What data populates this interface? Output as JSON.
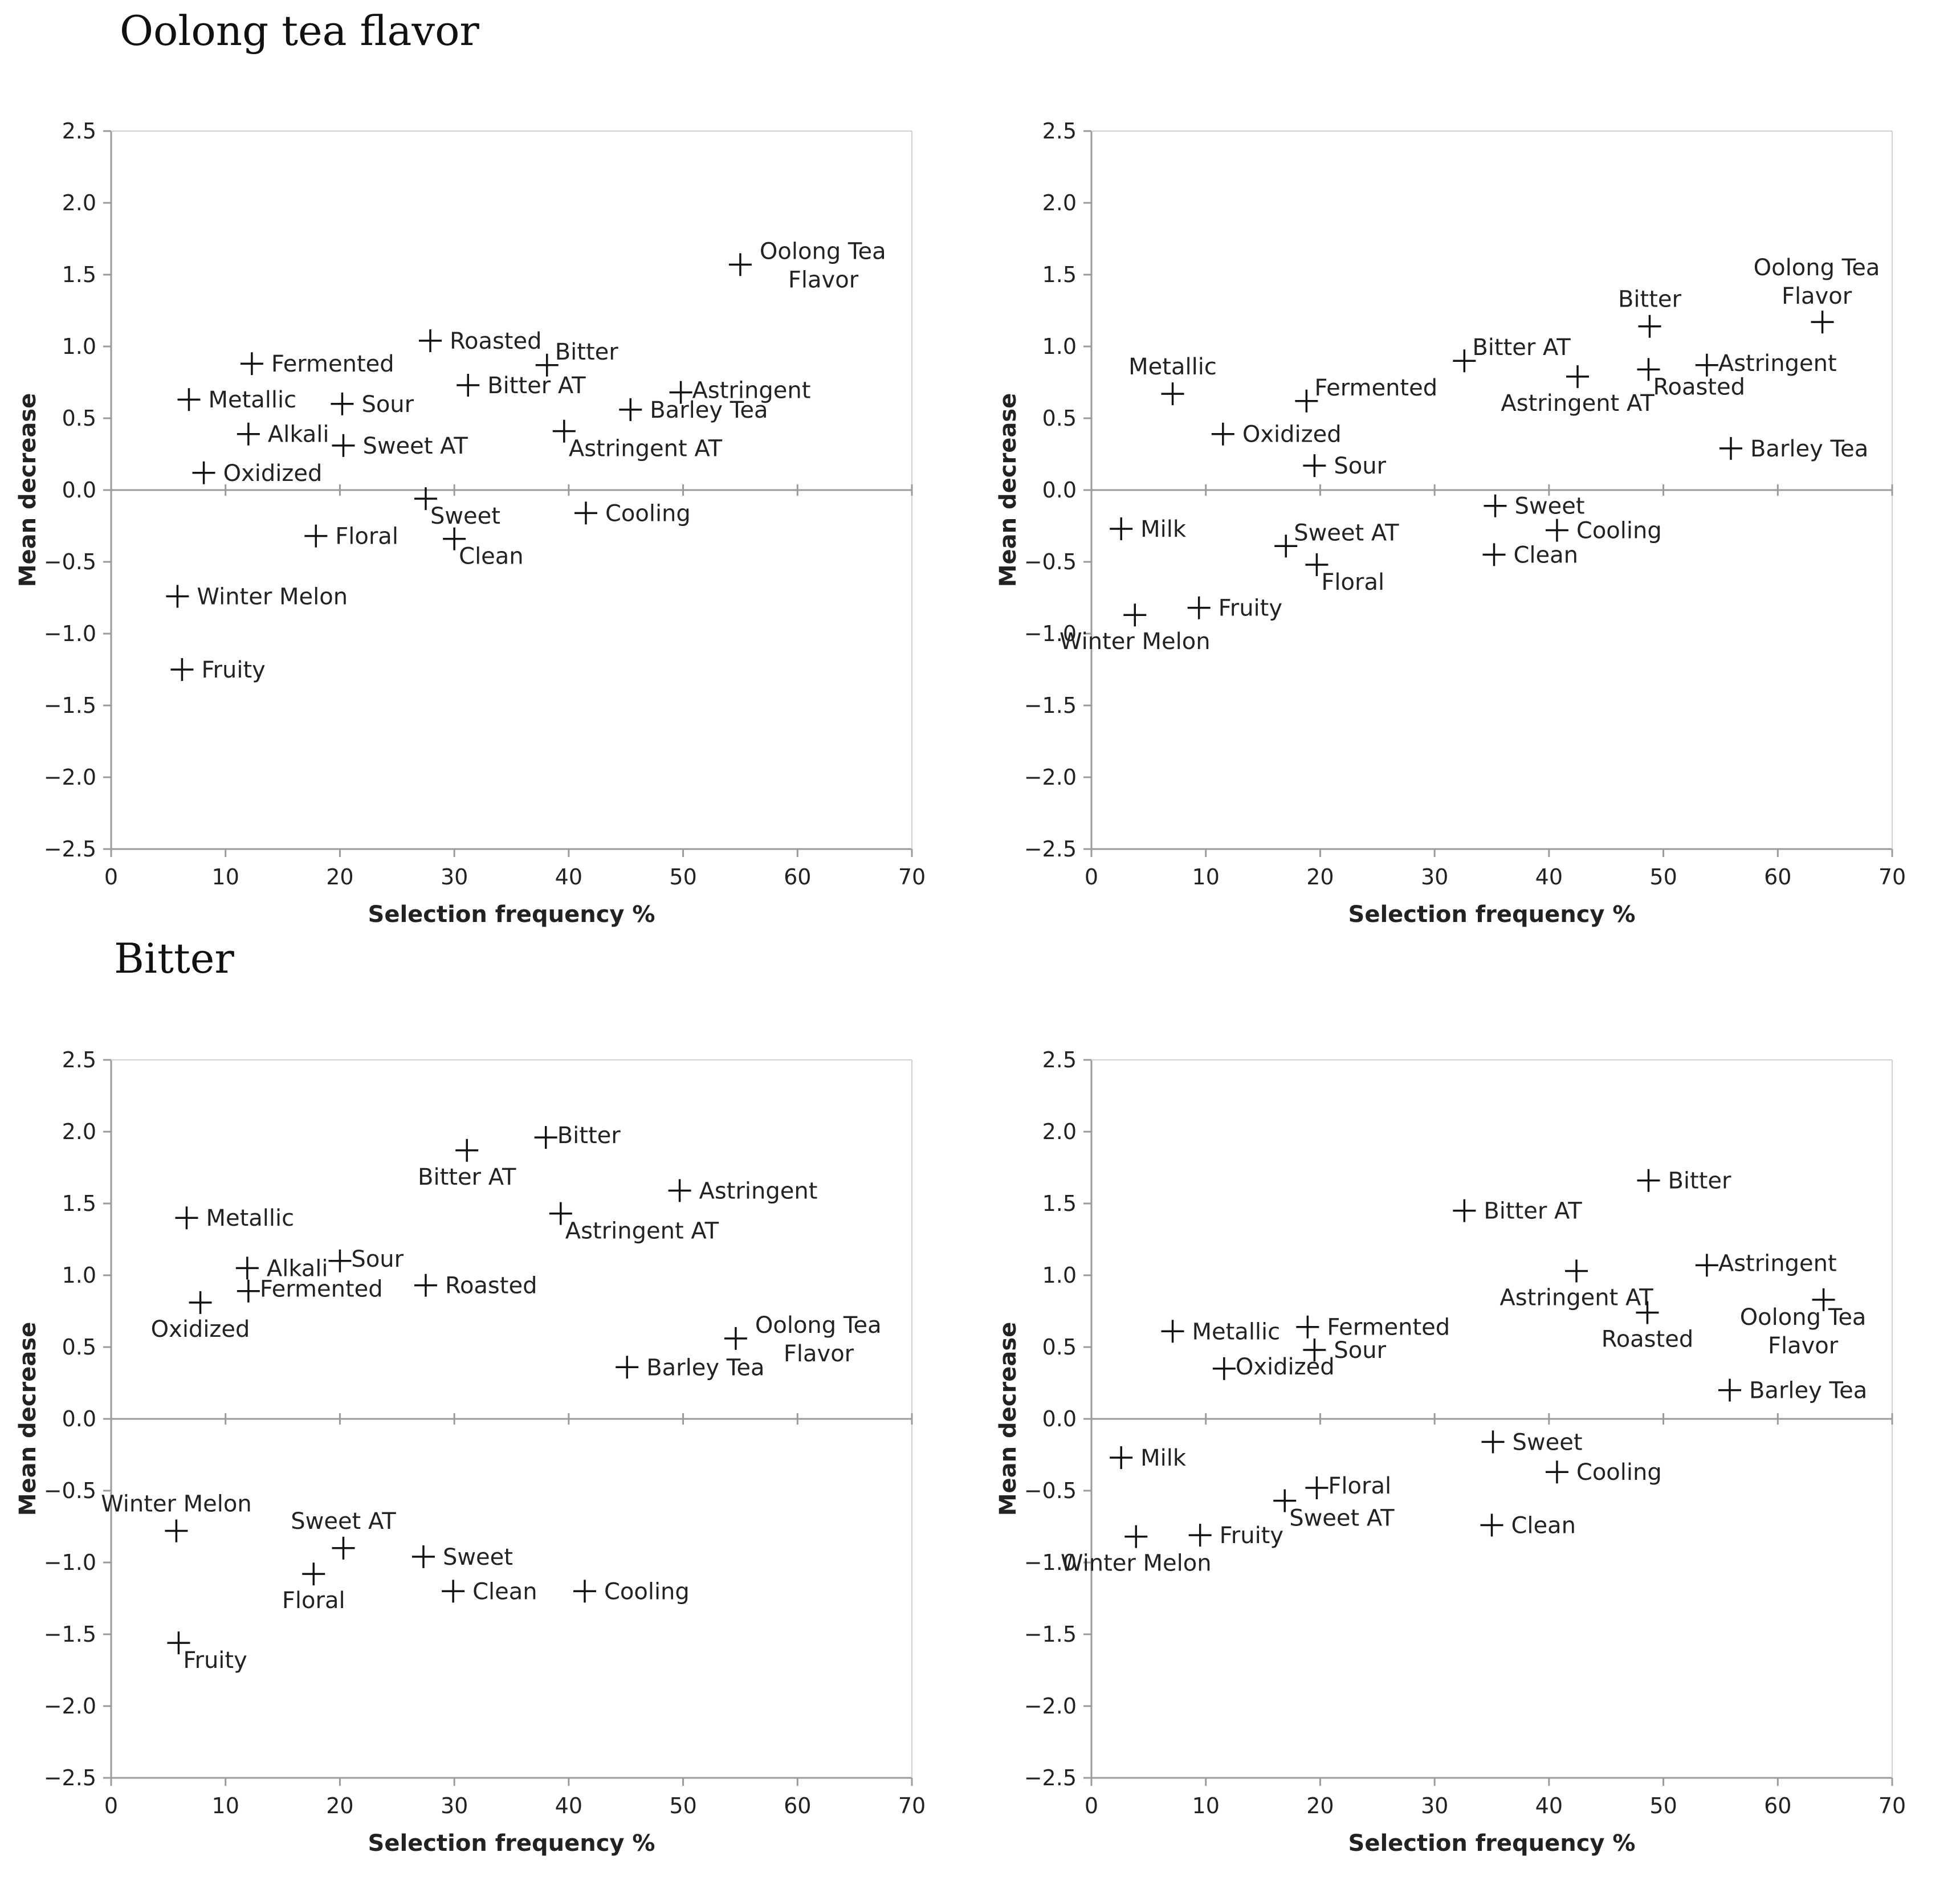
{
  "sections": {
    "top_title": "Oolong tea flavor",
    "bottom_title": "Bitter"
  },
  "colors": {
    "axis": "#9a9a9a",
    "marker": "#111111",
    "text": "#222222"
  },
  "chart_data": [
    {
      "id": "oolong-left",
      "type": "scatter",
      "title": "",
      "xlabel": "Selection frequency %",
      "ylabel": "Mean decrease",
      "xlim": [
        0,
        70
      ],
      "ylim": [
        -2.5,
        2.5
      ],
      "xticks": [
        "0",
        "10",
        "20",
        "30",
        "40",
        "50",
        "60",
        "70"
      ],
      "yticks": [
        "2.5",
        "2.0",
        "1.5",
        "1.0",
        "0.5",
        "0.0",
        "−0.5",
        "−1.0",
        "−1.5",
        "−2.0",
        "−2.5"
      ],
      "points": [
        {
          "label": "Oolong Tea\nFlavor",
          "x": 55.0,
          "y": 1.57,
          "pos": "right-2"
        },
        {
          "label": "Roasted",
          "x": 27.9,
          "y": 1.04,
          "pos": "right"
        },
        {
          "label": "Bitter",
          "x": 38.1,
          "y": 0.87,
          "pos": "upright"
        },
        {
          "label": "Fermented",
          "x": 12.3,
          "y": 0.88,
          "pos": "right"
        },
        {
          "label": "Bitter AT",
          "x": 31.2,
          "y": 0.73,
          "pos": "right"
        },
        {
          "label": "Astringent",
          "x": 49.8,
          "y": 0.68,
          "pos": "right-tight"
        },
        {
          "label": "Metallic",
          "x": 6.8,
          "y": 0.63,
          "pos": "right"
        },
        {
          "label": "Sour",
          "x": 20.2,
          "y": 0.6,
          "pos": "right"
        },
        {
          "label": "Barley Tea",
          "x": 45.4,
          "y": 0.56,
          "pos": "right"
        },
        {
          "label": "Alkali",
          "x": 12.0,
          "y": 0.39,
          "pos": "right"
        },
        {
          "label": "Astringent AT",
          "x": 39.6,
          "y": 0.41,
          "pos": "downright"
        },
        {
          "label": "Sweet AT",
          "x": 20.3,
          "y": 0.31,
          "pos": "right"
        },
        {
          "label": "Oxidized",
          "x": 8.1,
          "y": 0.12,
          "pos": "right"
        },
        {
          "label": "Sweet",
          "x": 27.5,
          "y": -0.06,
          "pos": "downright"
        },
        {
          "label": "Cooling",
          "x": 41.5,
          "y": -0.16,
          "pos": "right"
        },
        {
          "label": "Floral",
          "x": 17.9,
          "y": -0.32,
          "pos": "right"
        },
        {
          "label": "Clean",
          "x": 30.0,
          "y": -0.34,
          "pos": "downright"
        },
        {
          "label": "Winter Melon",
          "x": 5.8,
          "y": -0.74,
          "pos": "right"
        },
        {
          "label": "Fruity",
          "x": 6.2,
          "y": -1.25,
          "pos": "right"
        }
      ]
    },
    {
      "id": "oolong-right",
      "type": "scatter",
      "title": "",
      "xlabel": "Selection frequency %",
      "ylabel": "Mean decrease",
      "xlim": [
        0,
        70
      ],
      "ylim": [
        -2.5,
        2.5
      ],
      "xticks": [
        "0",
        "10",
        "20",
        "30",
        "40",
        "50",
        "60",
        "70"
      ],
      "yticks": [
        "2.5",
        "2.0",
        "1.5",
        "1.0",
        "0.5",
        "0.0",
        "−0.5",
        "−1.0",
        "−1.5",
        "−2.0",
        "−2.5"
      ],
      "points": [
        {
          "label": "Oolong Tea\nFlavor",
          "x": 63.9,
          "y": 1.17,
          "pos": "above-2"
        },
        {
          "label": "Bitter",
          "x": 48.8,
          "y": 1.14,
          "pos": "above"
        },
        {
          "label": "Bitter AT",
          "x": 32.6,
          "y": 0.9,
          "pos": "upright"
        },
        {
          "label": "Astringent",
          "x": 53.8,
          "y": 0.87,
          "pos": "right-tight"
        },
        {
          "label": "Roasted",
          "x": 48.7,
          "y": 0.84,
          "pos": "downright"
        },
        {
          "label": "Astringent AT",
          "x": 42.5,
          "y": 0.79,
          "pos": "below"
        },
        {
          "label": "Metallic",
          "x": 7.1,
          "y": 0.67,
          "pos": "above"
        },
        {
          "label": "Fermented",
          "x": 18.8,
          "y": 0.62,
          "pos": "upright"
        },
        {
          "label": "Oxidized",
          "x": 11.5,
          "y": 0.39,
          "pos": "right"
        },
        {
          "label": "Barley Tea",
          "x": 55.9,
          "y": 0.29,
          "pos": "right"
        },
        {
          "label": "Sour",
          "x": 19.5,
          "y": 0.17,
          "pos": "right"
        },
        {
          "label": "Sweet",
          "x": 35.3,
          "y": -0.11,
          "pos": "right"
        },
        {
          "label": "Milk",
          "x": 2.6,
          "y": -0.27,
          "pos": "right"
        },
        {
          "label": "Cooling",
          "x": 40.7,
          "y": -0.28,
          "pos": "right"
        },
        {
          "label": "Sweet AT",
          "x": 17.0,
          "y": -0.39,
          "pos": "upright"
        },
        {
          "label": "Clean",
          "x": 35.2,
          "y": -0.45,
          "pos": "right"
        },
        {
          "label": "Floral",
          "x": 19.7,
          "y": -0.52,
          "pos": "downright"
        },
        {
          "label": "Fruity",
          "x": 9.4,
          "y": -0.82,
          "pos": "right"
        },
        {
          "label": "Winter Melon",
          "x": 3.8,
          "y": -0.87,
          "pos": "below"
        }
      ]
    },
    {
      "id": "bitter-left",
      "type": "scatter",
      "title": "",
      "xlabel": "Selection frequency %",
      "ylabel": "Mean decrease",
      "xlim": [
        0,
        70
      ],
      "ylim": [
        -2.5,
        2.5
      ],
      "xticks": [
        "0",
        "10",
        "20",
        "30",
        "40",
        "50",
        "60",
        "70"
      ],
      "yticks": [
        "2.5",
        "2.0",
        "1.5",
        "1.0",
        "0.5",
        "0.0",
        "−0.5",
        "−1.0",
        "−1.5",
        "−2.0",
        "−2.5"
      ],
      "points": [
        {
          "label": "Bitter",
          "x": 38.0,
          "y": 1.96,
          "pos": "right-tight"
        },
        {
          "label": "Bitter AT",
          "x": 31.1,
          "y": 1.87,
          "pos": "below"
        },
        {
          "label": "Astringent",
          "x": 49.7,
          "y": 1.59,
          "pos": "right"
        },
        {
          "label": "Astringent AT",
          "x": 39.3,
          "y": 1.43,
          "pos": "downright"
        },
        {
          "label": "Metallic",
          "x": 6.6,
          "y": 1.4,
          "pos": "right"
        },
        {
          "label": "Sour",
          "x": 20.0,
          "y": 1.1,
          "pos": "right-tight"
        },
        {
          "label": "Alkali",
          "x": 11.9,
          "y": 1.05,
          "pos": "right"
        },
        {
          "label": "Roasted",
          "x": 27.5,
          "y": 0.93,
          "pos": "right"
        },
        {
          "label": "Fermented",
          "x": 12.0,
          "y": 0.89,
          "pos": "right-tight"
        },
        {
          "label": "Oxidized",
          "x": 7.8,
          "y": 0.81,
          "pos": "below"
        },
        {
          "label": "Oolong Tea\nFlavor",
          "x": 54.6,
          "y": 0.56,
          "pos": "right-2"
        },
        {
          "label": "Barley Tea",
          "x": 45.1,
          "y": 0.36,
          "pos": "right"
        },
        {
          "label": "Winter Melon",
          "x": 5.7,
          "y": -0.78,
          "pos": "above"
        },
        {
          "label": "Sweet AT",
          "x": 20.3,
          "y": -0.9,
          "pos": "above"
        },
        {
          "label": "Sweet",
          "x": 27.3,
          "y": -0.96,
          "pos": "right"
        },
        {
          "label": "Floral",
          "x": 17.7,
          "y": -1.08,
          "pos": "below"
        },
        {
          "label": "Clean",
          "x": 29.9,
          "y": -1.2,
          "pos": "right"
        },
        {
          "label": "Cooling",
          "x": 41.4,
          "y": -1.2,
          "pos": "right"
        },
        {
          "label": "Fruity",
          "x": 5.9,
          "y": -1.56,
          "pos": "downright"
        }
      ]
    },
    {
      "id": "bitter-right",
      "type": "scatter",
      "title": "",
      "xlabel": "Selection frequency %",
      "ylabel": "Mean decrease",
      "xlim": [
        0,
        70
      ],
      "ylim": [
        -2.5,
        2.5
      ],
      "xticks": [
        "0",
        "10",
        "20",
        "30",
        "40",
        "50",
        "60",
        "70"
      ],
      "yticks": [
        "2.5",
        "2.0",
        "1.5",
        "1.0",
        "0.5",
        "0.0",
        "−0.5",
        "−1.0",
        "−1.5",
        "−2.0",
        "−2.5"
      ],
      "points": [
        {
          "label": "Bitter",
          "x": 48.7,
          "y": 1.66,
          "pos": "right"
        },
        {
          "label": "Bitter AT",
          "x": 32.6,
          "y": 1.45,
          "pos": "right"
        },
        {
          "label": "Astringent",
          "x": 53.8,
          "y": 1.07,
          "pos": "right-tight"
        },
        {
          "label": "Astringent AT",
          "x": 42.4,
          "y": 1.03,
          "pos": "below"
        },
        {
          "label": "Oolong Tea\nFlavor",
          "x": 64.0,
          "y": 0.83,
          "pos": "belowleft-2"
        },
        {
          "label": "Roasted",
          "x": 48.6,
          "y": 0.74,
          "pos": "below"
        },
        {
          "label": "Fermented",
          "x": 18.9,
          "y": 0.64,
          "pos": "right"
        },
        {
          "label": "Metallic",
          "x": 7.1,
          "y": 0.61,
          "pos": "right"
        },
        {
          "label": "Sour",
          "x": 19.5,
          "y": 0.48,
          "pos": "right"
        },
        {
          "label": "Oxidized",
          "x": 11.6,
          "y": 0.35,
          "pos": "right-tight"
        },
        {
          "label": "Barley Tea",
          "x": 55.8,
          "y": 0.2,
          "pos": "right"
        },
        {
          "label": "Sweet",
          "x": 35.1,
          "y": -0.16,
          "pos": "right"
        },
        {
          "label": "Milk",
          "x": 2.6,
          "y": -0.27,
          "pos": "right"
        },
        {
          "label": "Cooling",
          "x": 40.7,
          "y": -0.37,
          "pos": "right"
        },
        {
          "label": "Floral",
          "x": 19.7,
          "y": -0.48,
          "pos": "right-tight"
        },
        {
          "label": "Sweet AT",
          "x": 16.9,
          "y": -0.57,
          "pos": "downright"
        },
        {
          "label": "Clean",
          "x": 35.0,
          "y": -0.74,
          "pos": "right"
        },
        {
          "label": "Fruity",
          "x": 9.5,
          "y": -0.81,
          "pos": "right"
        },
        {
          "label": "Winter Melon",
          "x": 3.9,
          "y": -0.82,
          "pos": "below"
        }
      ]
    }
  ]
}
